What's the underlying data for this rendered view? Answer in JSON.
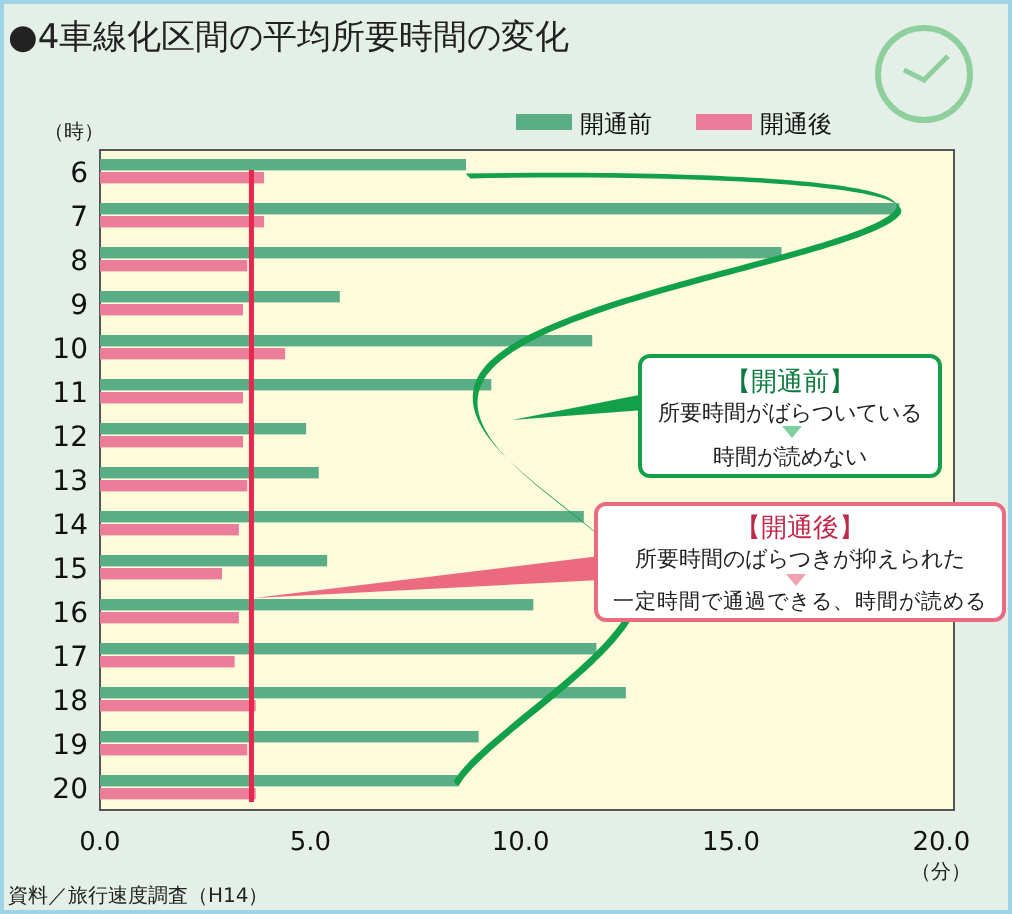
{
  "chart_data": {
    "type": "bar",
    "orientation": "horizontal",
    "title": "●4車線化区間の平均所要時間の変化",
    "ylabel": "（時）",
    "xlabel": "（分）",
    "categories": [
      "6",
      "7",
      "8",
      "9",
      "10",
      "11",
      "12",
      "13",
      "14",
      "15",
      "16",
      "17",
      "18",
      "19",
      "20"
    ],
    "series": [
      {
        "name": "開通前",
        "color": "#5aae86",
        "values": [
          8.7,
          19.0,
          16.2,
          5.7,
          11.7,
          9.3,
          4.9,
          5.2,
          11.5,
          5.4,
          10.3,
          11.8,
          12.5,
          9.0,
          8.5
        ]
      },
      {
        "name": "開通後",
        "color": "#ec7d9a",
        "values": [
          3.9,
          3.9,
          3.5,
          3.4,
          4.4,
          3.4,
          3.4,
          3.5,
          3.3,
          2.9,
          3.3,
          3.2,
          3.7,
          3.5,
          3.7
        ]
      }
    ],
    "xlim": [
      0,
      20.3
    ],
    "xticks": [
      {
        "value": 0,
        "label": "0.0"
      },
      {
        "value": 5,
        "label": "5.0"
      },
      {
        "value": 10,
        "label": "10.0"
      },
      {
        "value": 15,
        "label": "15.0"
      },
      {
        "value": 20,
        "label": "20.0"
      }
    ],
    "ref_lines": [
      {
        "axis": "x",
        "value": 3.6,
        "color": "#e8264f"
      }
    ],
    "legend": "top right",
    "grid": false,
    "annotations": [
      "【開通前】",
      "所要時間がばらついている",
      "時間が読めない",
      "【開通後】",
      "所要時間のばらつきが抑えられた",
      "一定時間で通過できる、時間が読める",
      "資料／旅行速度調査（H14）"
    ]
  }
}
